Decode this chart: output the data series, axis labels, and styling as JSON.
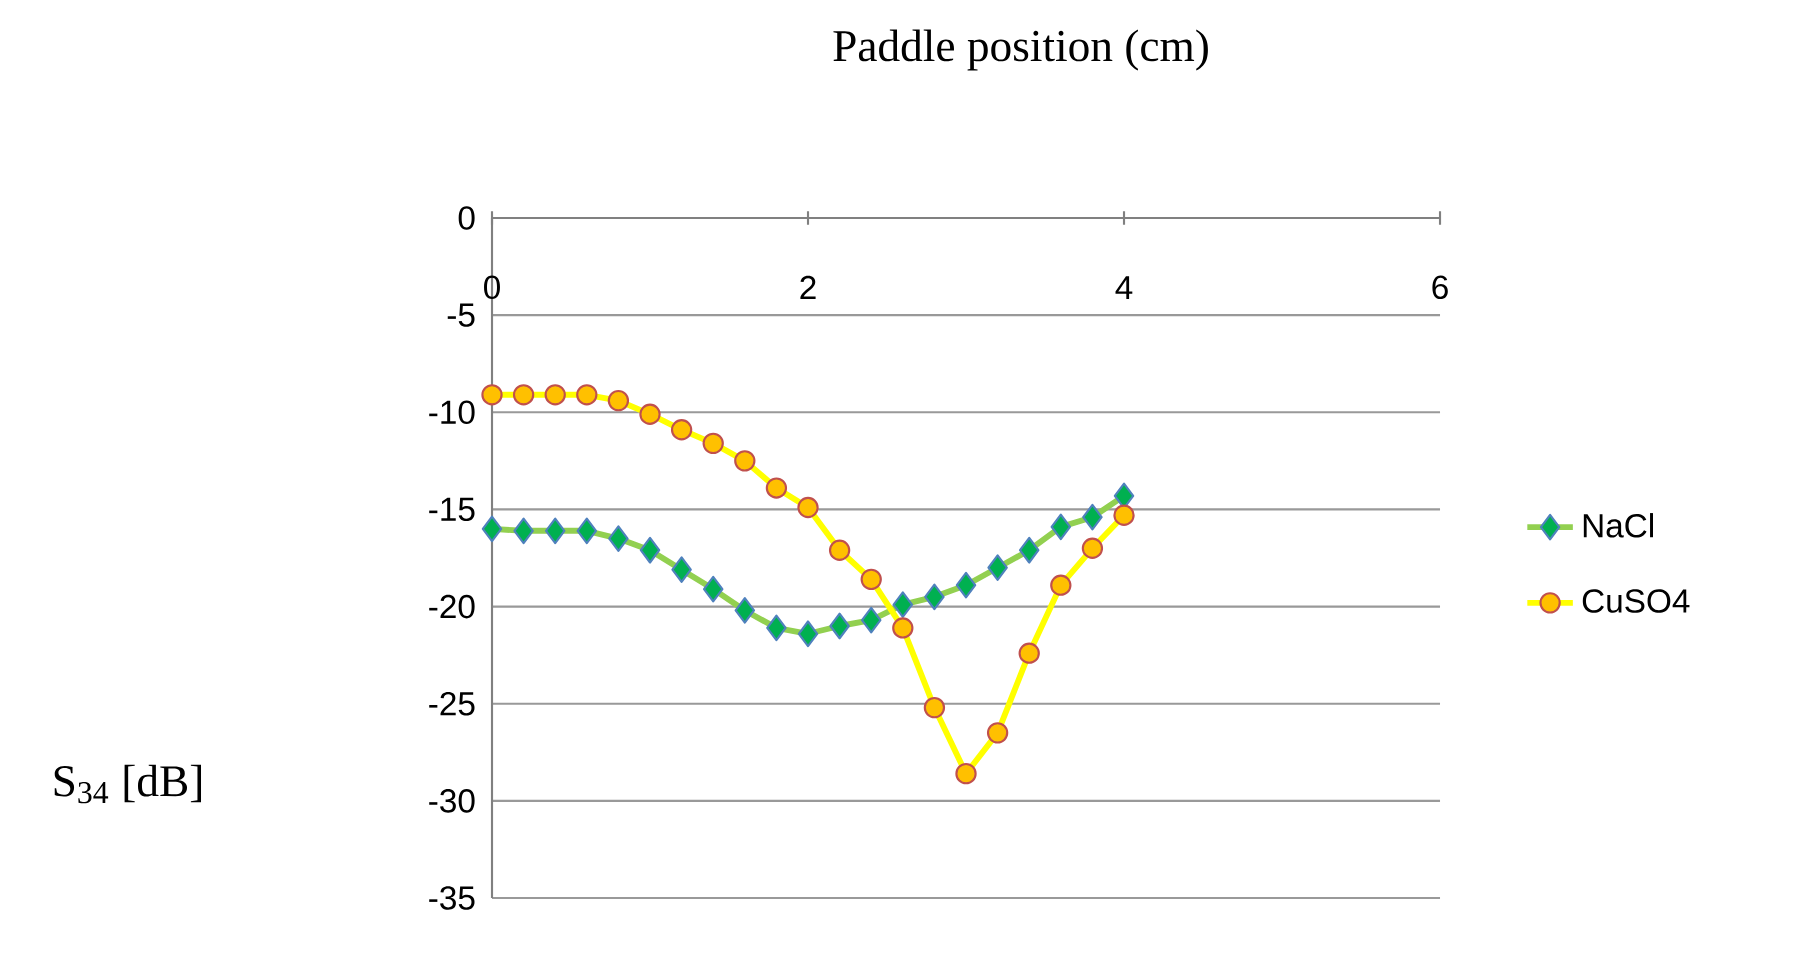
{
  "chart_data": {
    "type": "line",
    "xlabel": "Paddle position (cm)",
    "annotations": [
      "S$_{34}$ [dB]"
    ],
    "x": [
      0,
      0.2,
      0.4,
      0.6,
      0.8,
      1.0,
      1.2,
      1.4,
      1.6,
      1.8,
      2.0,
      2.2,
      2.4,
      2.6,
      2.8,
      3.0,
      3.2,
      3.4,
      3.6,
      3.8,
      4.0
    ],
    "series": [
      {
        "name": "NaCl",
        "color": "#92d050",
        "marker": "diamond",
        "values": [
          -16.0,
          -16.1,
          -16.1,
          -16.1,
          -16.5,
          -17.1,
          -18.1,
          -19.1,
          -20.2,
          -21.1,
          -21.4,
          -21.0,
          -20.7,
          -19.9,
          -19.5,
          -18.9,
          -18.0,
          -17.1,
          -15.9,
          -15.4,
          -14.3
        ]
      },
      {
        "name": "CuSO4",
        "color": "#ffff00",
        "marker": "circle",
        "values": [
          -9.1,
          -9.1,
          -9.1,
          -9.1,
          -9.4,
          -10.1,
          -10.9,
          -11.6,
          -12.5,
          -13.9,
          -14.9,
          -17.1,
          -18.6,
          -21.1,
          -25.2,
          -28.6,
          -26.5,
          -22.4,
          -18.9,
          -17.0,
          -15.3
        ]
      }
    ],
    "xlim": [
      0,
      6
    ],
    "xticks": [
      0,
      2,
      4,
      6
    ],
    "ylim": [
      -35,
      0
    ],
    "yticks": [
      -35,
      -30,
      -25,
      -20,
      -15,
      -10,
      -5,
      0
    ],
    "grid": "y",
    "legend": "right",
    "line_style": "solid"
  }
}
